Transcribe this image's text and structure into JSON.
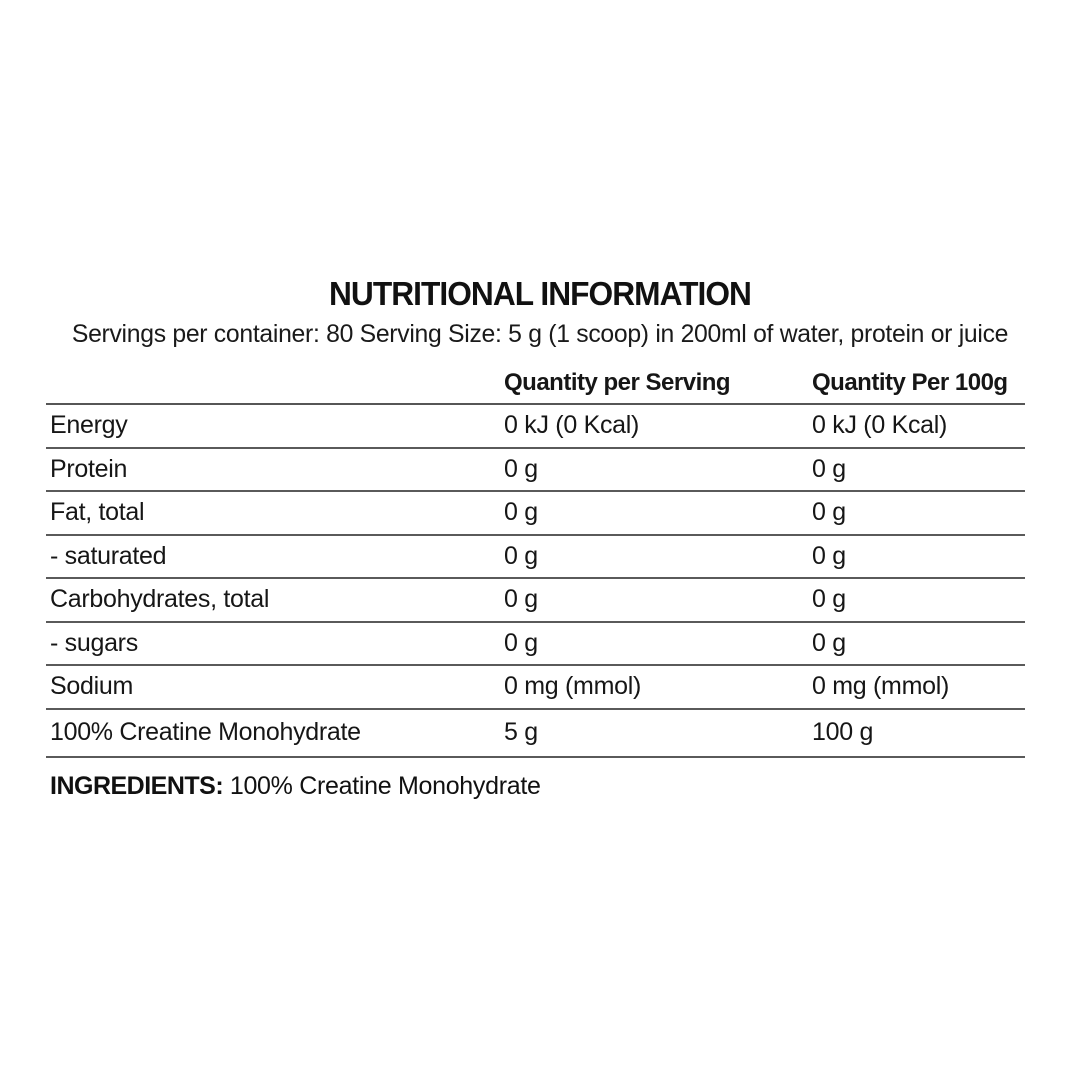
{
  "page": {
    "background": "#ffffff",
    "text_color": "#161616",
    "rule_color": "#5a5a5a"
  },
  "label": {
    "title": "NUTRITIONAL INFORMATION",
    "serving_info": "Servings per container: 80 Serving Size: 5 g (1 scoop) in 200ml of water, protein or juice",
    "table": {
      "columns": [
        "",
        "Quantity per Serving",
        "Quantity Per 100g"
      ],
      "rows": [
        {
          "name": "Energy",
          "per_serving": "0 kJ (0 Kcal)",
          "per_100g": "0 kJ (0 Kcal)"
        },
        {
          "name": "Protein",
          "per_serving": "0 g",
          "per_100g": "0 g"
        },
        {
          "name": "Fat, total",
          "per_serving": "0 g",
          "per_100g": "0 g"
        },
        {
          "name": "- saturated",
          "per_serving": "0 g",
          "per_100g": "0 g"
        },
        {
          "name": "Carbohydrates, total",
          "per_serving": "0 g",
          "per_100g": "0 g"
        },
        {
          "name": "- sugars",
          "per_serving": "0 g",
          "per_100g": "0 g"
        },
        {
          "name": "Sodium",
          "per_serving": "0 mg (mmol)",
          "per_100g": "0 mg (mmol)"
        },
        {
          "name": "100% Creatine Monohydrate",
          "per_serving": "5 g",
          "per_100g": "100 g"
        }
      ]
    },
    "ingredients": {
      "label": "INGREDIENTS:",
      "value": "100% Creatine Monohydrate"
    }
  }
}
